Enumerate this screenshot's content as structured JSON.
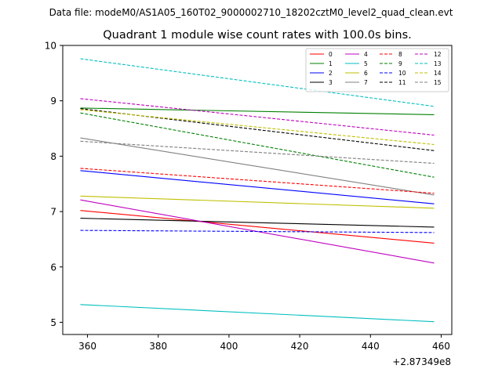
{
  "chart_data": {
    "type": "line",
    "suptitle": "Data file: modeM0/AS1A05_160T02_9000002710_18202cztM0_level2_quad_clean.evt",
    "title": "Quadrant 1 module wise count rates with 100.0s bins.",
    "xlabel": "",
    "ylabel": "",
    "x_offset_label": "+2.87349e8",
    "xlim": [
      353,
      463
    ],
    "ylim": [
      4.78,
      10
    ],
    "x_ticks": [
      360,
      380,
      400,
      420,
      440,
      460
    ],
    "y_ticks": [
      5,
      6,
      7,
      8,
      9,
      10
    ],
    "grid": false,
    "legend_position": "upper right",
    "x": [
      358,
      458
    ],
    "series": [
      {
        "name": "0",
        "color": "#ff0000",
        "dash": "solid",
        "values": [
          7.02,
          6.43
        ]
      },
      {
        "name": "1",
        "color": "#008000",
        "dash": "solid",
        "values": [
          8.87,
          8.75
        ]
      },
      {
        "name": "2",
        "color": "#0000ff",
        "dash": "solid",
        "values": [
          7.74,
          7.14
        ]
      },
      {
        "name": "3",
        "color": "#000000",
        "dash": "solid",
        "values": [
          6.88,
          6.72
        ]
      },
      {
        "name": "4",
        "color": "#bf00bf",
        "dash": "solid",
        "values": [
          7.21,
          6.07
        ]
      },
      {
        "name": "5",
        "color": "#00bfbf",
        "dash": "solid",
        "values": [
          5.32,
          5.01
        ]
      },
      {
        "name": "6",
        "color": "#bfbf00",
        "dash": "solid",
        "values": [
          7.28,
          7.06
        ]
      },
      {
        "name": "7",
        "color": "#808080",
        "dash": "solid",
        "values": [
          8.33,
          7.3
        ]
      },
      {
        "name": "8",
        "color": "#ff0000",
        "dash": "dashed",
        "values": [
          7.78,
          7.33
        ]
      },
      {
        "name": "9",
        "color": "#008000",
        "dash": "dashed",
        "values": [
          8.78,
          7.62
        ]
      },
      {
        "name": "10",
        "color": "#0000ff",
        "dash": "dashed",
        "values": [
          6.66,
          6.62
        ]
      },
      {
        "name": "11",
        "color": "#000000",
        "dash": "dashed",
        "values": [
          8.86,
          8.1
        ]
      },
      {
        "name": "12",
        "color": "#bf00bf",
        "dash": "dashed",
        "values": [
          9.04,
          8.38
        ]
      },
      {
        "name": "13",
        "color": "#00bfbf",
        "dash": "dashed",
        "values": [
          9.76,
          8.9
        ]
      },
      {
        "name": "14",
        "color": "#bfbf00",
        "dash": "dashed",
        "values": [
          8.84,
          8.21
        ]
      },
      {
        "name": "15",
        "color": "#808080",
        "dash": "dashed",
        "values": [
          8.27,
          7.87
        ]
      }
    ]
  }
}
